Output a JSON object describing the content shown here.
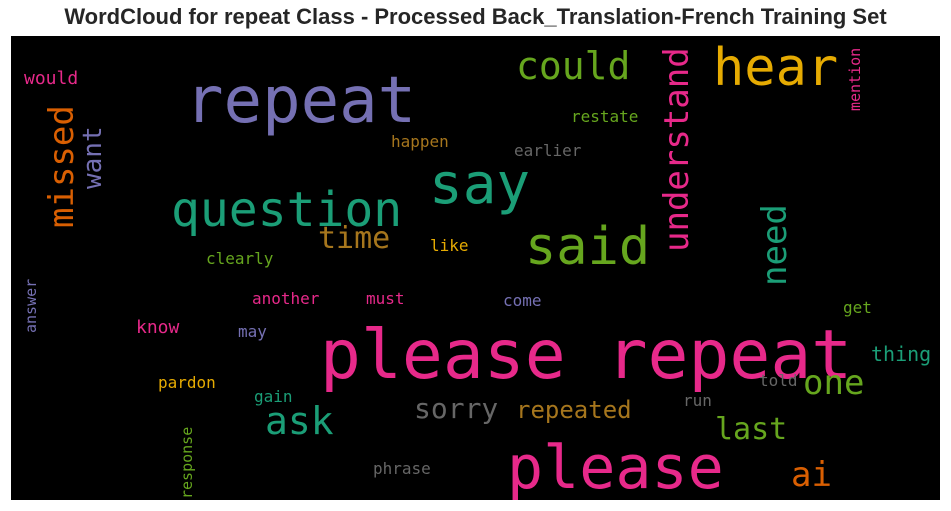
{
  "chart_data": {
    "type": "wordcloud",
    "title": "WordCloud for repeat Class - Processed Back_Translation-French Training Set",
    "background": "#000000",
    "colors": {
      "purple": "#7570b3",
      "pink": "#e7298a",
      "green": "#66a61e",
      "teal": "#1b9e77",
      "gold": "#e6ab02",
      "orange": "#d95f02",
      "brown": "#a6761d",
      "gray": "#666666"
    },
    "words": [
      {
        "text": "please repeat",
        "color": "pink"
      },
      {
        "text": "repeat",
        "color": "purple"
      },
      {
        "text": "please",
        "color": "pink"
      },
      {
        "text": "hear",
        "color": "gold"
      },
      {
        "text": "say",
        "color": "teal"
      },
      {
        "text": "said",
        "color": "green"
      },
      {
        "text": "question",
        "color": "teal"
      },
      {
        "text": "understand",
        "color": "pink"
      },
      {
        "text": "could",
        "color": "green"
      },
      {
        "text": "missed",
        "color": "orange"
      },
      {
        "text": "ask",
        "color": "teal"
      },
      {
        "text": "one",
        "color": "green"
      },
      {
        "text": "need",
        "color": "teal"
      },
      {
        "text": "time",
        "color": "brown"
      },
      {
        "text": "sorry",
        "color": "gray"
      },
      {
        "text": "ai",
        "color": "orange"
      },
      {
        "text": "last",
        "color": "green"
      },
      {
        "text": "want",
        "color": "purple"
      },
      {
        "text": "repeated",
        "color": "brown"
      },
      {
        "text": "thing",
        "color": "teal"
      },
      {
        "text": "know",
        "color": "pink"
      },
      {
        "text": "would",
        "color": "pink"
      },
      {
        "text": "restate",
        "color": "green"
      },
      {
        "text": "happen",
        "color": "brown"
      },
      {
        "text": "earlier",
        "color": "gray"
      },
      {
        "text": "like",
        "color": "gold"
      },
      {
        "text": "clearly",
        "color": "green"
      },
      {
        "text": "mention",
        "color": "pink"
      },
      {
        "text": "another",
        "color": "pink"
      },
      {
        "text": "must",
        "color": "pink"
      },
      {
        "text": "come",
        "color": "purple"
      },
      {
        "text": "get",
        "color": "green"
      },
      {
        "text": "may",
        "color": "purple"
      },
      {
        "text": "pardon",
        "color": "gold"
      },
      {
        "text": "told",
        "color": "gray"
      },
      {
        "text": "gain",
        "color": "teal"
      },
      {
        "text": "run",
        "color": "gray"
      },
      {
        "text": "answer",
        "color": "purple"
      },
      {
        "text": "phrase",
        "color": "gray"
      },
      {
        "text": "response",
        "color": "green"
      }
    ]
  }
}
